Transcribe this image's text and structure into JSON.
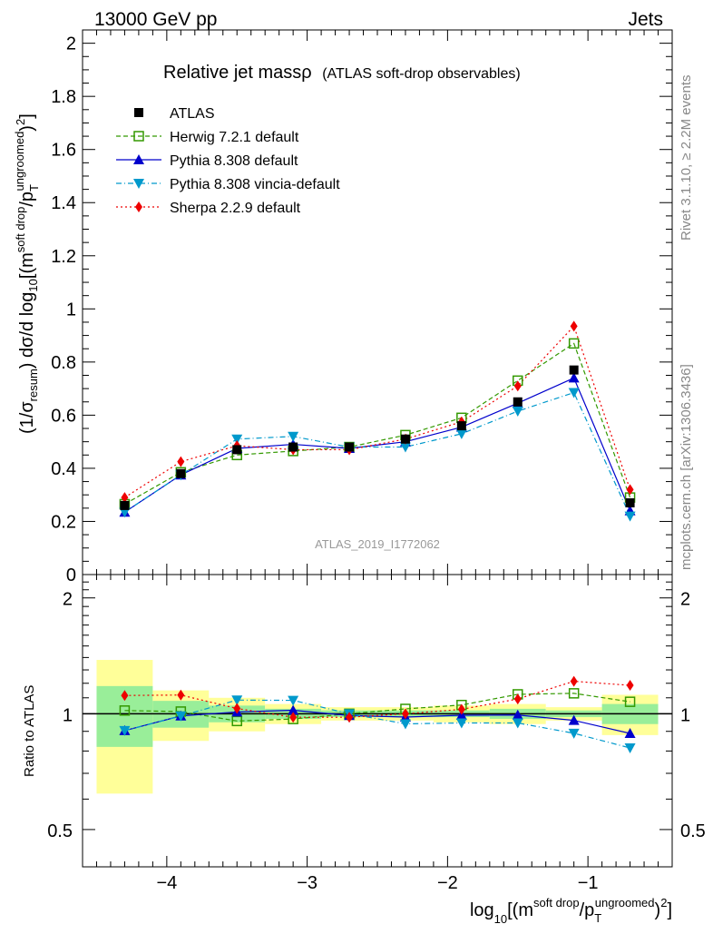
{
  "header": {
    "left": "13000 GeV pp",
    "right": "Jets"
  },
  "title": {
    "main": "Relative jet massρ",
    "sub": "(ATLAS soft-drop observables)"
  },
  "side_labels": {
    "rivet": "Rivet 3.1.10, ≥ 2.2M events",
    "mcplots": "mcplots.cern.ch [arXiv:1306.3436]"
  },
  "watermark": "ATLAS_2019_I1772062",
  "chart_data": {
    "type": "line",
    "title": "Relative jet massρ (ATLAS soft-drop observables)",
    "xlabel": "log10[(m^soft drop/pT^ungroomed)^2]",
    "ylabel": "(1/σresum) dσ/d log10[(m^soft drop/pT^ungroomed)^2]",
    "ratio_ylabel": "Ratio to ATLAS",
    "xlim": [
      -4.6,
      -0.4
    ],
    "ylim": [
      0,
      2.05
    ],
    "ratio_ylim": [
      0.4,
      2.3
    ],
    "x_ticks": [
      -4,
      -3,
      -2,
      -1
    ],
    "x_tick_labels": [
      "−4",
      "−3",
      "−2",
      "−1"
    ],
    "y_ticks": [
      0,
      0.2,
      0.4,
      0.6,
      0.8,
      1,
      1.2,
      1.4,
      1.6,
      1.8,
      2
    ],
    "y_tick_labels": [
      "0",
      "0.2",
      "0.4",
      "0.6",
      "0.8",
      "1",
      "1.2",
      "1.4",
      "1.6",
      "1.8",
      "2"
    ],
    "ratio_ticks": [
      0.5,
      1,
      2
    ],
    "ratio_tick_labels": [
      "0.5",
      "1",
      "2"
    ],
    "bin_edges": [
      -4.5,
      -4.1,
      -3.7,
      -3.3,
      -2.9,
      -2.5,
      -2.1,
      -1.7,
      -1.3,
      -0.9,
      -0.5
    ],
    "x": [
      -4.3,
      -3.9,
      -3.5,
      -3.1,
      -2.7,
      -2.3,
      -1.9,
      -1.5,
      -1.1,
      -0.7
    ],
    "data": {
      "name": "ATLAS",
      "values": [
        0.26,
        0.38,
        0.47,
        0.48,
        0.48,
        0.51,
        0.56,
        0.65,
        0.77,
        0.27
      ],
      "band_inner": [
        0.18,
        0.08,
        0.05,
        0.03,
        0.02,
        0.02,
        0.02,
        0.03,
        0.02,
        0.06
      ],
      "band_outer": [
        0.38,
        0.15,
        0.1,
        0.06,
        0.04,
        0.04,
        0.05,
        0.06,
        0.04,
        0.12
      ]
    },
    "series": [
      {
        "name": "Herwig 7.2.1 default",
        "color": "#339900",
        "marker": "open-square",
        "dash": "5,3",
        "values": [
          0.265,
          0.385,
          0.45,
          0.465,
          0.48,
          0.525,
          0.59,
          0.73,
          0.87,
          0.29
        ]
      },
      {
        "name": "Pythia 8.308 default",
        "color": "#0000cc",
        "marker": "triangle-up",
        "dash": "",
        "values": [
          0.235,
          0.375,
          0.475,
          0.49,
          0.475,
          0.5,
          0.555,
          0.645,
          0.74,
          0.24
        ]
      },
      {
        "name": "Pythia 8.308 vincia-default",
        "color": "#0099cc",
        "marker": "triangle-down",
        "dash": "6,3,1,3",
        "values": [
          0.235,
          0.375,
          0.51,
          0.52,
          0.48,
          0.48,
          0.53,
          0.615,
          0.685,
          0.22
        ]
      },
      {
        "name": "Sherpa 2.2.9 default",
        "color": "#ee0000",
        "marker": "diamond",
        "dash": "2,3",
        "values": [
          0.29,
          0.425,
          0.485,
          0.47,
          0.47,
          0.51,
          0.575,
          0.71,
          0.935,
          0.32
        ]
      }
    ],
    "colors": {
      "data": "#000000",
      "band_inner": "#99ee99",
      "band_outer": "#ffff99",
      "watermark": "#999999",
      "side_labels": "#888888"
    }
  }
}
